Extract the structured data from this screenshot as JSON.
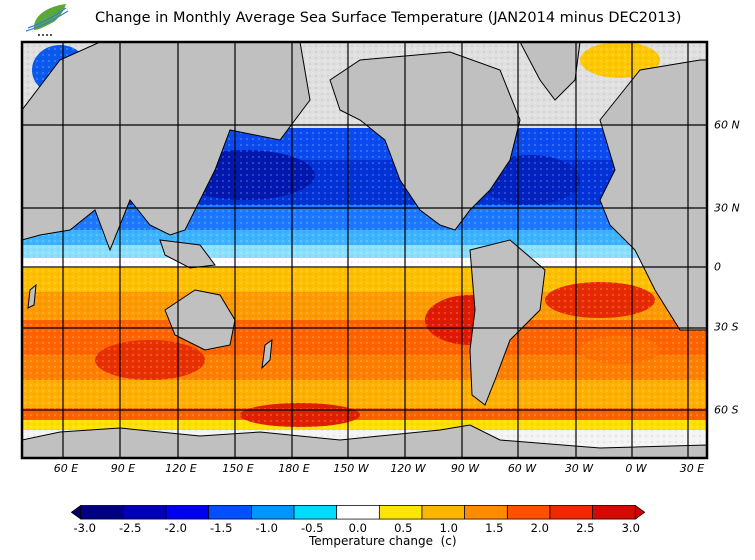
{
  "header": {
    "title": "Change in Monthly Average Sea Surface Temperature (JAN2014 minus DEC2013)",
    "logo_icon": "leaf-logo-icon"
  },
  "map": {
    "longitude_labels": [
      "60 E",
      "90 E",
      "120 E",
      "150 E",
      "180 E",
      "150 W",
      "120 W",
      "90 W",
      "60 W",
      "30 W",
      "0 W",
      "30 E"
    ],
    "latitude_labels": [
      "60 N",
      "30 N",
      "0",
      "30 S",
      "60 S"
    ],
    "land_color": "#c0c0c0",
    "sea_ice_color": "#e0e0e0",
    "regions": {
      "north_pacific": "cooling",
      "north_atlantic": "cooling",
      "southern_hemisphere_oceans": "warming"
    }
  },
  "legend": {
    "title": "Temperature change  (c)",
    "ticks": [
      "-3.0",
      "-2.5",
      "-2.0",
      "-1.5",
      "-1.0",
      "-0.5",
      "0.0",
      "0.5",
      "1.0",
      "1.5",
      "2.0",
      "2.5",
      "3.0"
    ],
    "colors": [
      "#000080",
      "#0000b4",
      "#0000f0",
      "#0050ff",
      "#0096ff",
      "#00dcff",
      "#ffffff",
      "#ffe600",
      "#ffb400",
      "#ff8c00",
      "#ff5000",
      "#f02800",
      "#d20a00"
    ],
    "under_color": "#000060",
    "over_color": "#d20000"
  }
}
